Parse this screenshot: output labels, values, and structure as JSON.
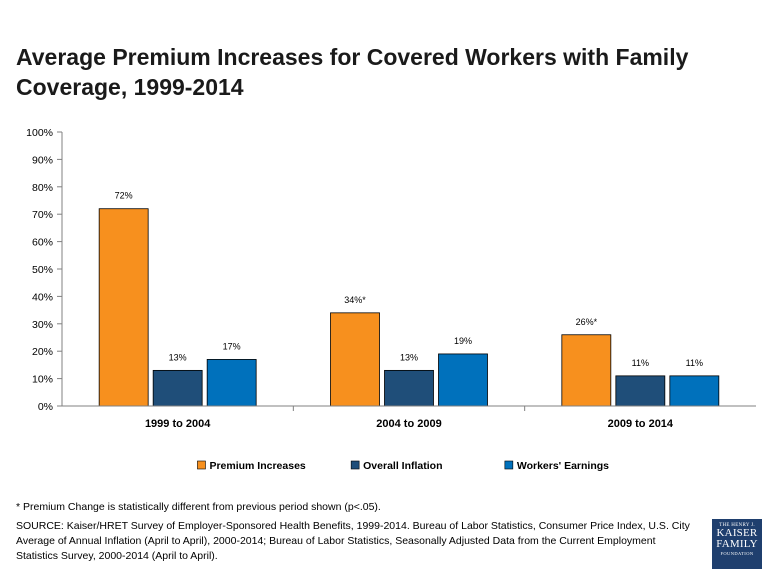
{
  "title": "Average Premium Increases for Covered Workers with Family Coverage, 1999-2014",
  "footnote": "* Premium Change is statistically different from previous period shown (p<.05).",
  "source": "SOURCE:  Kaiser/HRET Survey of Employer-Sponsored Health Benefits, 1999-2014. Bureau of Labor Statistics, Consumer Price Index, U.S. City Average of Annual Inflation (April to April), 2000-2014; Bureau of Labor Statistics, Seasonally Adjusted Data from the Current Employment Statistics Survey, 2000-2014 (April to April).",
  "logo": {
    "top": "THE HENRY J.",
    "line1": "KAISER",
    "line2": "FAMILY",
    "bottom": "FOUNDATION"
  },
  "chart_data": {
    "type": "bar",
    "title": "Average Premium Increases for Covered Workers with Family Coverage, 1999-2014",
    "xlabel": "",
    "ylabel": "",
    "categories": [
      "1999 to 2004",
      "2004 to 2009",
      "2009 to 2014"
    ],
    "ylim": [
      0,
      100
    ],
    "yticks": [
      0,
      10,
      20,
      30,
      40,
      50,
      60,
      70,
      80,
      90,
      100
    ],
    "ytick_labels": [
      "0%",
      "10%",
      "20%",
      "30%",
      "40%",
      "50%",
      "60%",
      "70%",
      "80%",
      "90%",
      "100%"
    ],
    "grid": false,
    "legend_position": "bottom",
    "series": [
      {
        "name": "Premium Increases",
        "color": "#f7901e",
        "values": [
          72,
          34,
          26
        ],
        "labels": [
          "72%",
          "34%*",
          "26%*"
        ]
      },
      {
        "name": "Overall Inflation",
        "color": "#1f4e79",
        "values": [
          13,
          13,
          11
        ],
        "labels": [
          "13%",
          "13%",
          "11%"
        ]
      },
      {
        "name": "Workers' Earnings",
        "color": "#0071bc",
        "values": [
          17,
          19,
          11
        ],
        "labels": [
          "17%",
          "19%",
          "11%"
        ]
      }
    ]
  }
}
